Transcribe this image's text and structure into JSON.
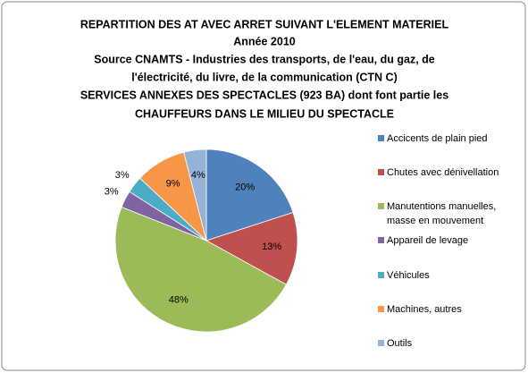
{
  "chart_data": {
    "type": "pie",
    "title": [
      "REPARTITION DES AT AVEC ARRET SUIVANT L'ELEMENT MATERIEL",
      "Année 2010",
      "Source CNAMTS - Industries des transports, de l'eau, du gaz, de",
      "l'électricité, du livre, de la communication (CTN C)",
      "SERVICES ANNEXES DES SPECTACLES (923 BA) dont font partie les",
      "CHAUFFEURS DANS LE MILIEU DU SPECTACLE"
    ],
    "categories": [
      "Accicents de plain pied",
      "Chutes avec dénivellation",
      "Manutentions manuelles, masse en mouvement",
      "Appareil de levage",
      "Véhicules",
      "Machines, autres",
      "Outils"
    ],
    "values": [
      20,
      13,
      48,
      3,
      3,
      9,
      4
    ],
    "value_labels": [
      "20%",
      "13%",
      "48%",
      "3%",
      "3%",
      "9%",
      "4%"
    ],
    "colors": [
      "#4f81bd",
      "#c0504d",
      "#9bbb59",
      "#8064a2",
      "#4bacc6",
      "#f79646",
      "#95b3d7"
    ],
    "legend": "right"
  }
}
